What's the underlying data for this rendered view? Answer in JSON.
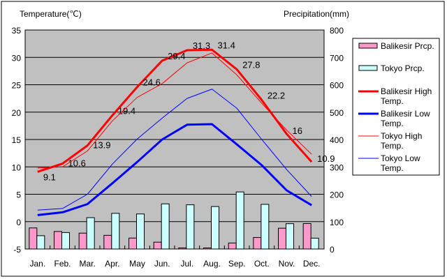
{
  "chart_data": {
    "type": "bar+line",
    "left_axis_title": "Temperature(℃)",
    "right_axis_title": "Precipitation(mm)",
    "categories": [
      "Jan.",
      "Feb.",
      "Mar.",
      "Apr.",
      "May",
      "Jun.",
      "Jul.",
      "Aug.",
      "Sep.",
      "Oct.",
      "Nov.",
      "Dec."
    ],
    "left_ylim": [
      -5,
      35
    ],
    "left_ticks": [
      "35",
      "30",
      "25",
      "20",
      "15",
      "10",
      "5",
      "0",
      "-5"
    ],
    "right_ylim": [
      0,
      800
    ],
    "right_ticks": [
      "800",
      "700",
      "600",
      "500",
      "400",
      "300",
      "200",
      "100",
      "0"
    ],
    "grid": true,
    "legend_position": "right",
    "bar_series": [
      {
        "name": "Balikesir Prcp.",
        "color": "#ff99cc",
        "values": [
          77,
          64,
          58,
          50,
          40,
          25,
          4,
          4,
          22,
          42,
          76,
          93
        ]
      },
      {
        "name": "Tokyo Prcp.",
        "color": "#ccffff",
        "values": [
          48.6,
          60.2,
          114.5,
          130.3,
          128.0,
          164.9,
          161.5,
          155.1,
          208.5,
          163.1,
          92.5,
          39.6
        ]
      }
    ],
    "line_series": [
      {
        "name": "Balikesir High Temp.",
        "color": "#ff0000",
        "width": "thick",
        "labeled": true,
        "values": [
          9.1,
          10.6,
          13.9,
          19.4,
          24.6,
          29.4,
          31.3,
          31.4,
          27.8,
          22.2,
          16,
          10.9
        ],
        "labels": [
          "9.1",
          "10.6",
          "13.9",
          "19.4",
          "24.6",
          "29.4",
          "31.3",
          "31.4",
          "27.8",
          "22.2",
          "16",
          "10.9"
        ]
      },
      {
        "name": "Balikesir Low Temp.",
        "color": "#0000ff",
        "width": "thick",
        "values": [
          1.2,
          1.7,
          3.2,
          7.0,
          10.9,
          15.0,
          17.7,
          17.8,
          14.1,
          10.3,
          5.7,
          3.0
        ]
      },
      {
        "name": "Tokyo High Temp.",
        "color": "#ff0000",
        "width": "thin",
        "values": [
          9.8,
          10.0,
          12.9,
          18.4,
          22.7,
          25.2,
          29.0,
          30.8,
          26.8,
          21.6,
          16.7,
          12.3
        ]
      },
      {
        "name": "Tokyo Low Temp.",
        "color": "#0000ff",
        "width": "thin",
        "values": [
          2.1,
          2.4,
          5.0,
          10.5,
          15.1,
          18.9,
          22.5,
          24.2,
          20.7,
          15.0,
          9.5,
          4.6
        ]
      }
    ]
  }
}
